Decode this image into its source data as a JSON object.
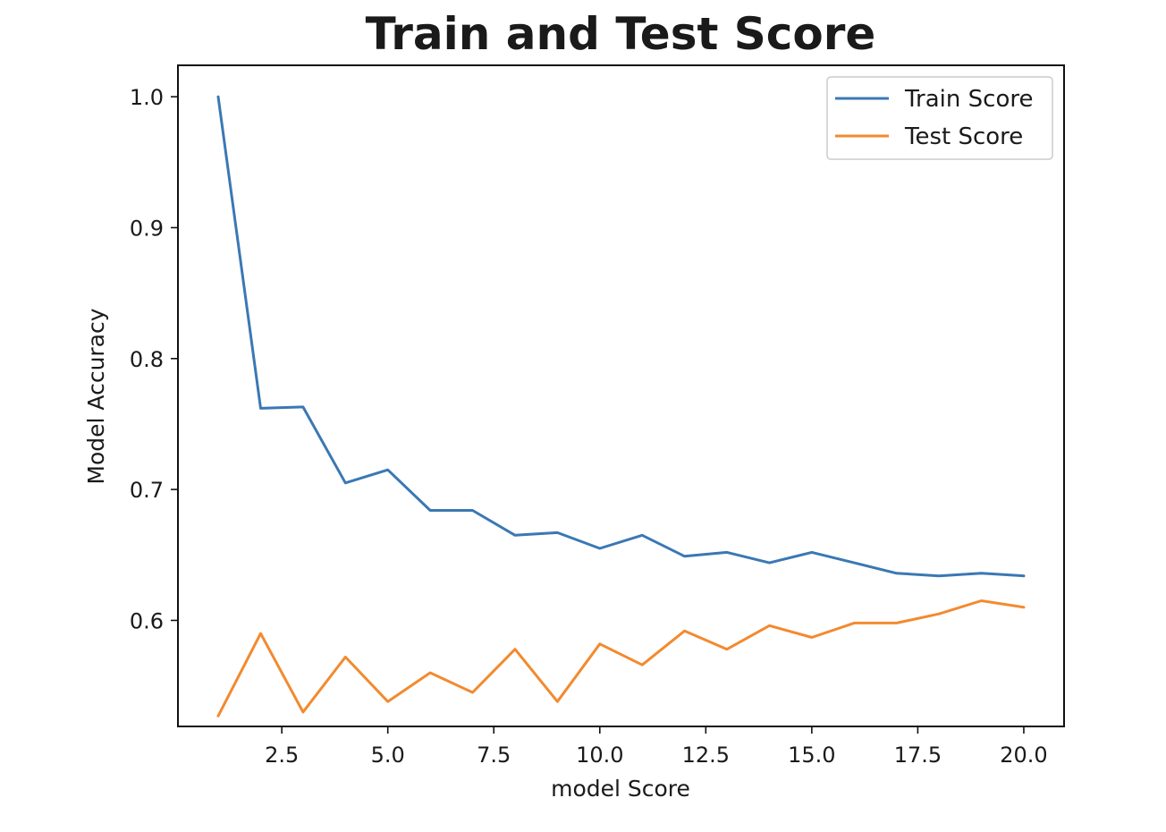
{
  "chart_data": {
    "type": "line",
    "title": "Train and Test Score",
    "xlabel": "model Score",
    "ylabel": "Model Accuracy",
    "xlim": [
      0.05,
      20.95
    ],
    "ylim": [
      0.519,
      1.024
    ],
    "x_ticks": [
      2.5,
      5.0,
      7.5,
      10.0,
      12.5,
      15.0,
      17.5,
      20.0
    ],
    "x_tick_labels": [
      "2.5",
      "5.0",
      "7.5",
      "10.0",
      "12.5",
      "15.0",
      "17.5",
      "20.0"
    ],
    "y_ticks": [
      0.6,
      0.7,
      0.8,
      0.9,
      1.0
    ],
    "y_tick_labels": [
      "0.6",
      "0.7",
      "0.8",
      "0.9",
      "1.0"
    ],
    "grid": false,
    "legend_position": "top-right",
    "x": [
      1,
      2,
      3,
      4,
      5,
      6,
      7,
      8,
      9,
      10,
      11,
      12,
      13,
      14,
      15,
      16,
      17,
      18,
      19,
      20
    ],
    "series": [
      {
        "name": "Train Score",
        "color": "#3a78b4",
        "values": [
          1.0,
          0.762,
          0.763,
          0.705,
          0.715,
          0.684,
          0.684,
          0.665,
          0.667,
          0.655,
          0.665,
          0.649,
          0.652,
          0.644,
          0.652,
          0.644,
          0.636,
          0.634,
          0.636,
          0.634
        ]
      },
      {
        "name": "Test Score",
        "color": "#f28a2f",
        "values": [
          0.527,
          0.59,
          0.53,
          0.572,
          0.538,
          0.56,
          0.545,
          0.578,
          0.538,
          0.582,
          0.566,
          0.592,
          0.578,
          0.596,
          0.587,
          0.598,
          0.598,
          0.605,
          0.615,
          0.61
        ]
      }
    ]
  }
}
